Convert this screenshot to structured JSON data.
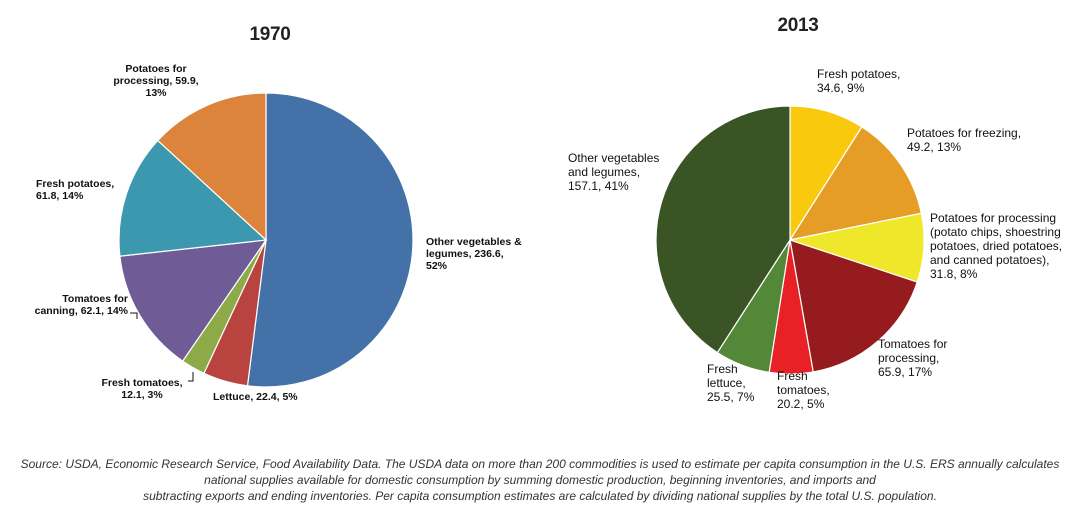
{
  "chart_data": [
    {
      "type": "pie",
      "title": "1970",
      "slices": [
        {
          "label": "Other vegetables & legumes, 236.6, 52%",
          "value": 236.6,
          "percent": 52,
          "color": "#4472A8"
        },
        {
          "label": "Lettuce, 22.4, 5%",
          "value": 22.4,
          "percent": 5,
          "color": "#B9433E"
        },
        {
          "label": "Fresh tomatoes, 12.1, 3%",
          "value": 12.1,
          "percent": 3,
          "color": "#8DAA48"
        },
        {
          "label": "Tomatoes for canning, 62.1, 14%",
          "value": 62.1,
          "percent": 14,
          "color": "#6F5B96"
        },
        {
          "label": "Fresh potatoes, 61.8,  14%",
          "value": 61.8,
          "percent": 14,
          "color": "#3C98AE"
        },
        {
          "label": "Potatoes for processing, 59.9, 13%",
          "value": 59.9,
          "percent": 13,
          "color": "#DC833C"
        }
      ]
    },
    {
      "type": "pie",
      "title": "2013",
      "slices": [
        {
          "label": "Fresh potatoes, 34.6, 9%",
          "value": 34.6,
          "percent": 9,
          "color": "#F8C90D"
        },
        {
          "label": "Potatoes for freezing, 49.2, 13%",
          "value": 49.2,
          "percent": 13,
          "color": "#E69D25"
        },
        {
          "label": "Potatoes for processing (potato chips, shoestring potatoes, dried potatoes, and canned potatoes), 31.8, 8%",
          "value": 31.8,
          "percent": 8,
          "color": "#EEE72A"
        },
        {
          "label": "Tomatoes for processing, 65.9, 17%",
          "value": 65.9,
          "percent": 17,
          "color": "#961B1E"
        },
        {
          "label": "Fresh tomatoes, 20.2, 5%",
          "value": 20.2,
          "percent": 5,
          "color": "#E82126"
        },
        {
          "label": "Fresh lettuce, 25.5, 7%",
          "value": 25.5,
          "percent": 7,
          "color": "#528838"
        },
        {
          "label": "Other vegetables and legumes, 157.1, 41%",
          "value": 157.1,
          "percent": 41,
          "color": "#3A5426"
        }
      ]
    }
  ],
  "labels_1970": {
    "other": "Other vegetables &\nlegumes, 236.6,\n52%",
    "lettuce": "Lettuce, 22.4, 5%",
    "fresh_tomatoes": "Fresh tomatoes,\n12.1, 3%",
    "tomatoes_canning": "Tomatoes for\ncanning, 62.1, 14%",
    "fresh_potatoes": "Fresh potatoes,\n61.8,  14%",
    "potatoes_processing": "Potatoes for\nprocessing, 59.9,\n13%"
  },
  "labels_2013": {
    "fresh_potatoes": "Fresh potatoes,\n34.6, 9%",
    "potatoes_freezing": "Potatoes for freezing,\n49.2, 13%",
    "potatoes_processing": "Potatoes for processing\n(potato chips, shoestring\npotatoes, dried potatoes,\nand canned potatoes),\n31.8, 8%",
    "tomatoes_processing": "Tomatoes for\nprocessing,\n65.9, 17%",
    "fresh_tomatoes": "Fresh\ntomatoes,\n20.2, 5%",
    "fresh_lettuce": "Fresh\nlettuce,\n25.5, 7%",
    "other": "Other vegetables\nand legumes,\n157.1, 41%"
  },
  "source": {
    "line1": "Source: USDA, Economic Research Service, Food Availability Data. The USDA data on more than 200 commodities is used to estimate per capita consumption in the U.S. ERS annually calculates",
    "line2": "national supplies available for domestic consumption by summing domestic production, beginning inventories, and imports and",
    "line3": "subtracting exports and ending inventories. Per capita consumption estimates are calculated by dividing national supplies by the total U.S. population."
  }
}
